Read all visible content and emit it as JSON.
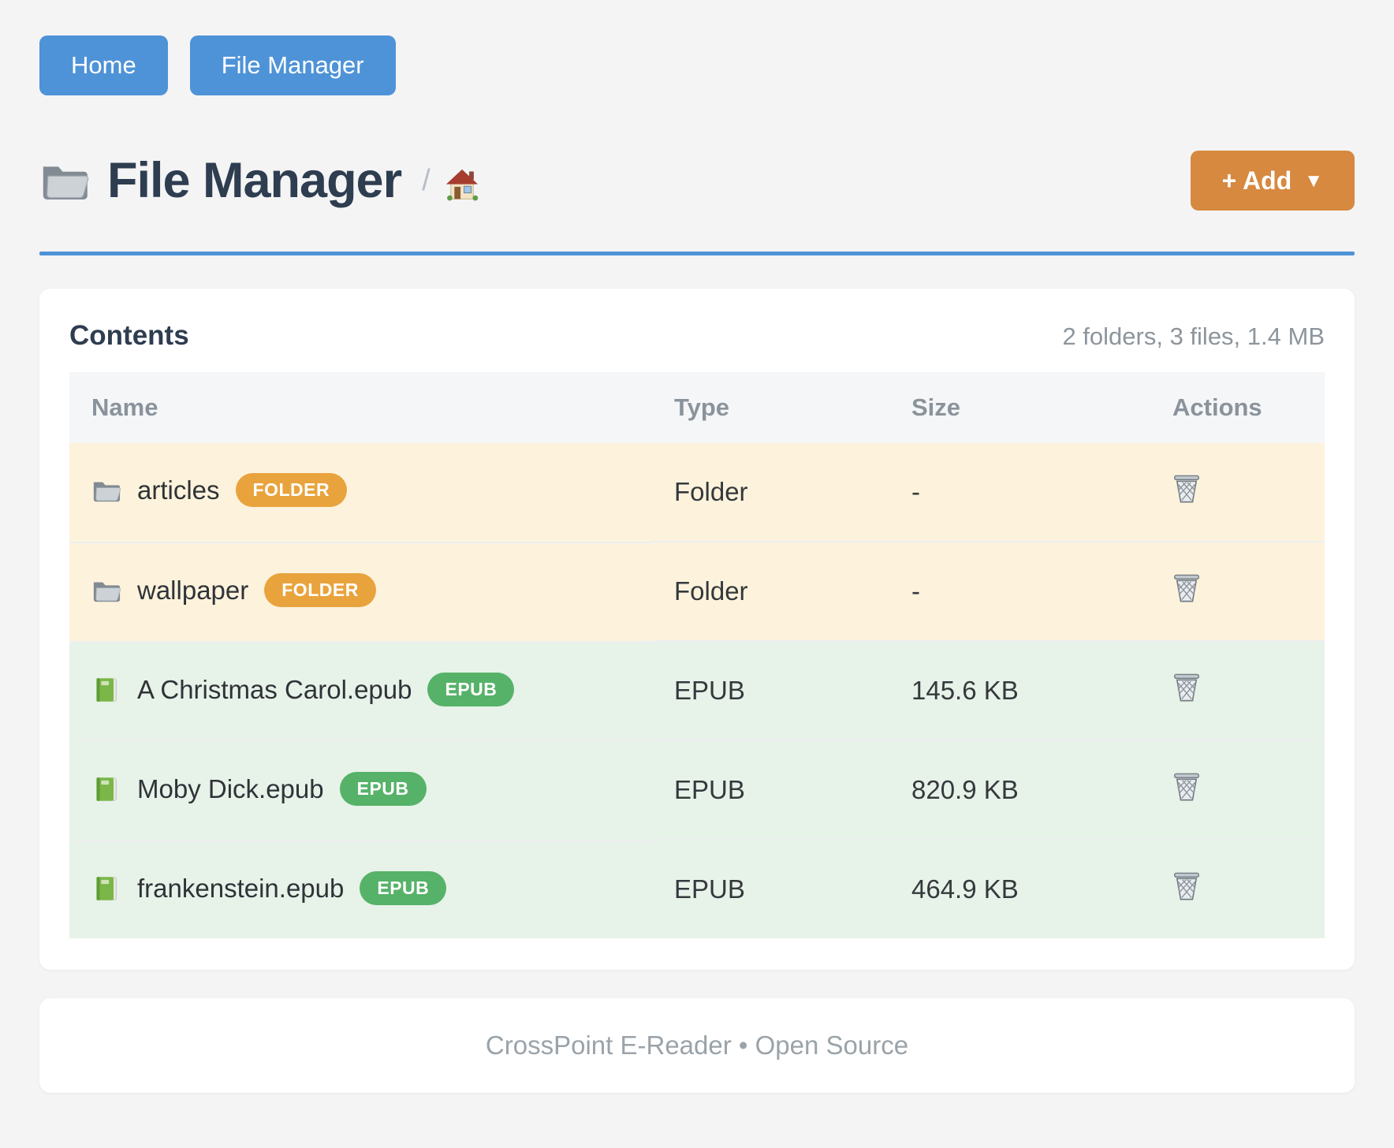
{
  "page": {
    "background": "#f4f4f5"
  },
  "nav": {
    "home_label": "Home",
    "file_manager_label": "File Manager",
    "button_color": "#4e93d7"
  },
  "header": {
    "title": "File Manager",
    "title_icon": "folder-icon",
    "breadcrumb_separator": "/",
    "home_icon": "house-icon",
    "add_label": "+ Add",
    "add_caret": "▼",
    "add_button_color": "#d6893f",
    "divider_color": "#4e93d7"
  },
  "contents": {
    "heading": "Contents",
    "summary": "2 folders, 3 files, 1.4 MB",
    "columns": [
      "Name",
      "Type",
      "Size",
      "Actions"
    ],
    "action_icon": "trash-icon",
    "rows": [
      {
        "name": "articles",
        "icon": "folder-icon",
        "badge": "FOLDER",
        "type": "Folder",
        "size": "-",
        "kind": "folder"
      },
      {
        "name": "wallpaper",
        "icon": "folder-icon",
        "badge": "FOLDER",
        "type": "Folder",
        "size": "-",
        "kind": "folder"
      },
      {
        "name": "A Christmas Carol.epub",
        "icon": "green-book-icon",
        "badge": "EPUB",
        "type": "EPUB",
        "size": "145.6 KB",
        "kind": "epub"
      },
      {
        "name": "Moby Dick.epub",
        "icon": "green-book-icon",
        "badge": "EPUB",
        "type": "EPUB",
        "size": "820.9 KB",
        "kind": "epub"
      },
      {
        "name": "frankenstein.epub",
        "icon": "green-book-icon",
        "badge": "EPUB",
        "type": "EPUB",
        "size": "464.9 KB",
        "kind": "epub"
      }
    ],
    "colors": {
      "folder_row_bg": "#fdf3dc",
      "epub_row_bg": "#e7f2e8",
      "folder_badge_bg": "#e9a33c",
      "epub_badge_bg": "#56b269",
      "header_row_bg": "#f5f6f8"
    }
  },
  "footer": {
    "text": "CrossPoint E-Reader • Open Source"
  }
}
